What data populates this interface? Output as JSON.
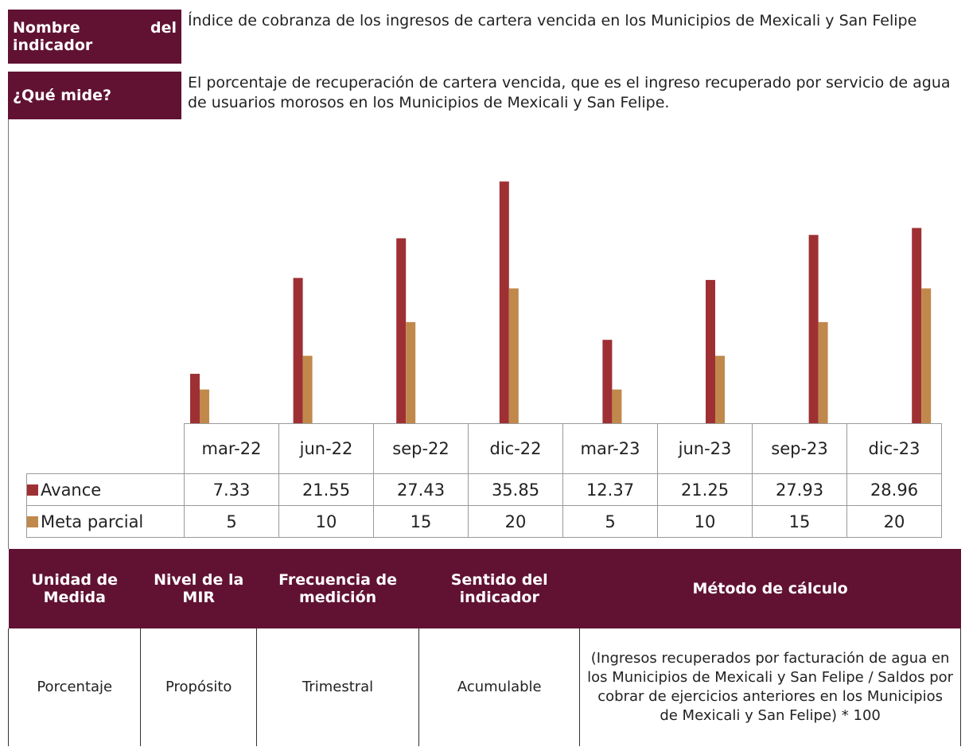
{
  "header": {
    "rows": [
      {
        "label": "Nombre del indicador",
        "text": "Índice de cobranza de los ingresos de cartera vencida en los Municipios de Mexicali y San Felipe"
      },
      {
        "label": "¿Qué mide?",
        "text": "El porcentaje de recuperación de cartera vencida, que es el ingreso recuperado por servicio de agua de usuarios morosos en los Municipios de Mexicali y San Felipe."
      }
    ]
  },
  "chart_data": {
    "type": "bar",
    "categories": [
      "mar-22",
      "jun-22",
      "sep-22",
      "dic-22",
      "mar-23",
      "jun-23",
      "sep-23",
      "dic-23"
    ],
    "series": [
      {
        "name": "Avance",
        "color": "#9e3034",
        "values": [
          7.33,
          21.55,
          27.43,
          35.85,
          12.37,
          21.25,
          27.93,
          28.96
        ]
      },
      {
        "name": "Meta parcial",
        "color": "#c0894b",
        "values": [
          5,
          10,
          15,
          20,
          5,
          10,
          15,
          20
        ]
      }
    ],
    "ylim": [
      0,
      40
    ]
  },
  "table": {
    "headers": [
      "Unidad de Medida",
      "Nivel de la MIR",
      "Frecuencia de medición",
      "Sentido del indicador",
      "Método de cálculo"
    ],
    "rows": [
      [
        "Porcentaje",
        "Propósito",
        "Trimestral",
        "Acumulable",
        "(Ingresos recuperados por facturación de agua en los Municipios de Mexicali y San Felipe / Saldos por cobrar de ejercicios anteriores en los Municipios de Mexicali y San Felipe) * 100"
      ]
    ]
  }
}
